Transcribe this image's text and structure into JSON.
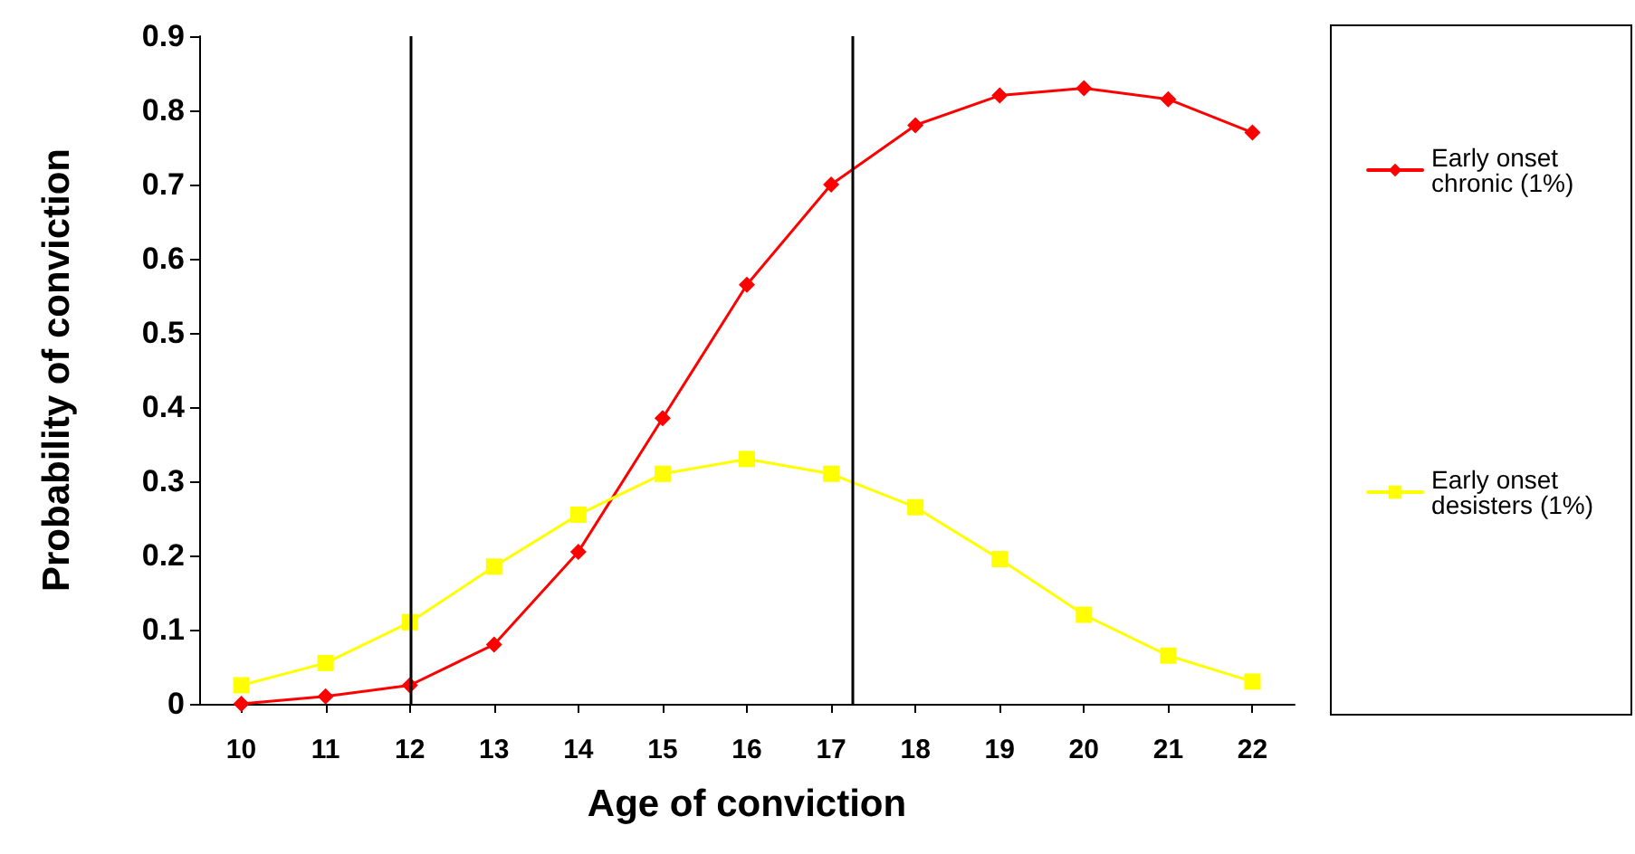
{
  "chart_data": {
    "type": "line",
    "xlabel": "Age of conviction",
    "ylabel": "Probability of conviction",
    "x": [
      10,
      11,
      12,
      13,
      14,
      15,
      16,
      17,
      18,
      19,
      20,
      21,
      22
    ],
    "xlim": [
      9.5,
      22.5
    ],
    "xticks": [
      10,
      11,
      12,
      13,
      14,
      15,
      16,
      17,
      18,
      19,
      20,
      21,
      22
    ],
    "ylim": [
      0,
      0.9
    ],
    "yticks": [
      0,
      0.1,
      0.2,
      0.3,
      0.4,
      0.5,
      0.6,
      0.7,
      0.8,
      0.9
    ],
    "grid": false,
    "legend": "right",
    "line_style": "solid",
    "series": [
      {
        "name": "Early onset chronic (1%)",
        "color": "#ff0000",
        "marker": "diamond",
        "values": [
          0.0,
          0.01,
          0.025,
          0.08,
          0.205,
          0.385,
          0.565,
          0.7,
          0.78,
          0.82,
          0.83,
          0.815,
          0.77
        ]
      },
      {
        "name": "Early onset desisters (1%)",
        "color": "#ffff00",
        "marker": "square",
        "values": [
          0.025,
          0.055,
          0.11,
          0.185,
          0.255,
          0.31,
          0.33,
          0.31,
          0.265,
          0.195,
          0.12,
          0.065,
          0.03
        ]
      }
    ],
    "ref_lines": [
      {
        "axis": "x",
        "value": 12,
        "color": "#000000"
      },
      {
        "axis": "x",
        "value": 17.25,
        "color": "#000000"
      }
    ]
  }
}
